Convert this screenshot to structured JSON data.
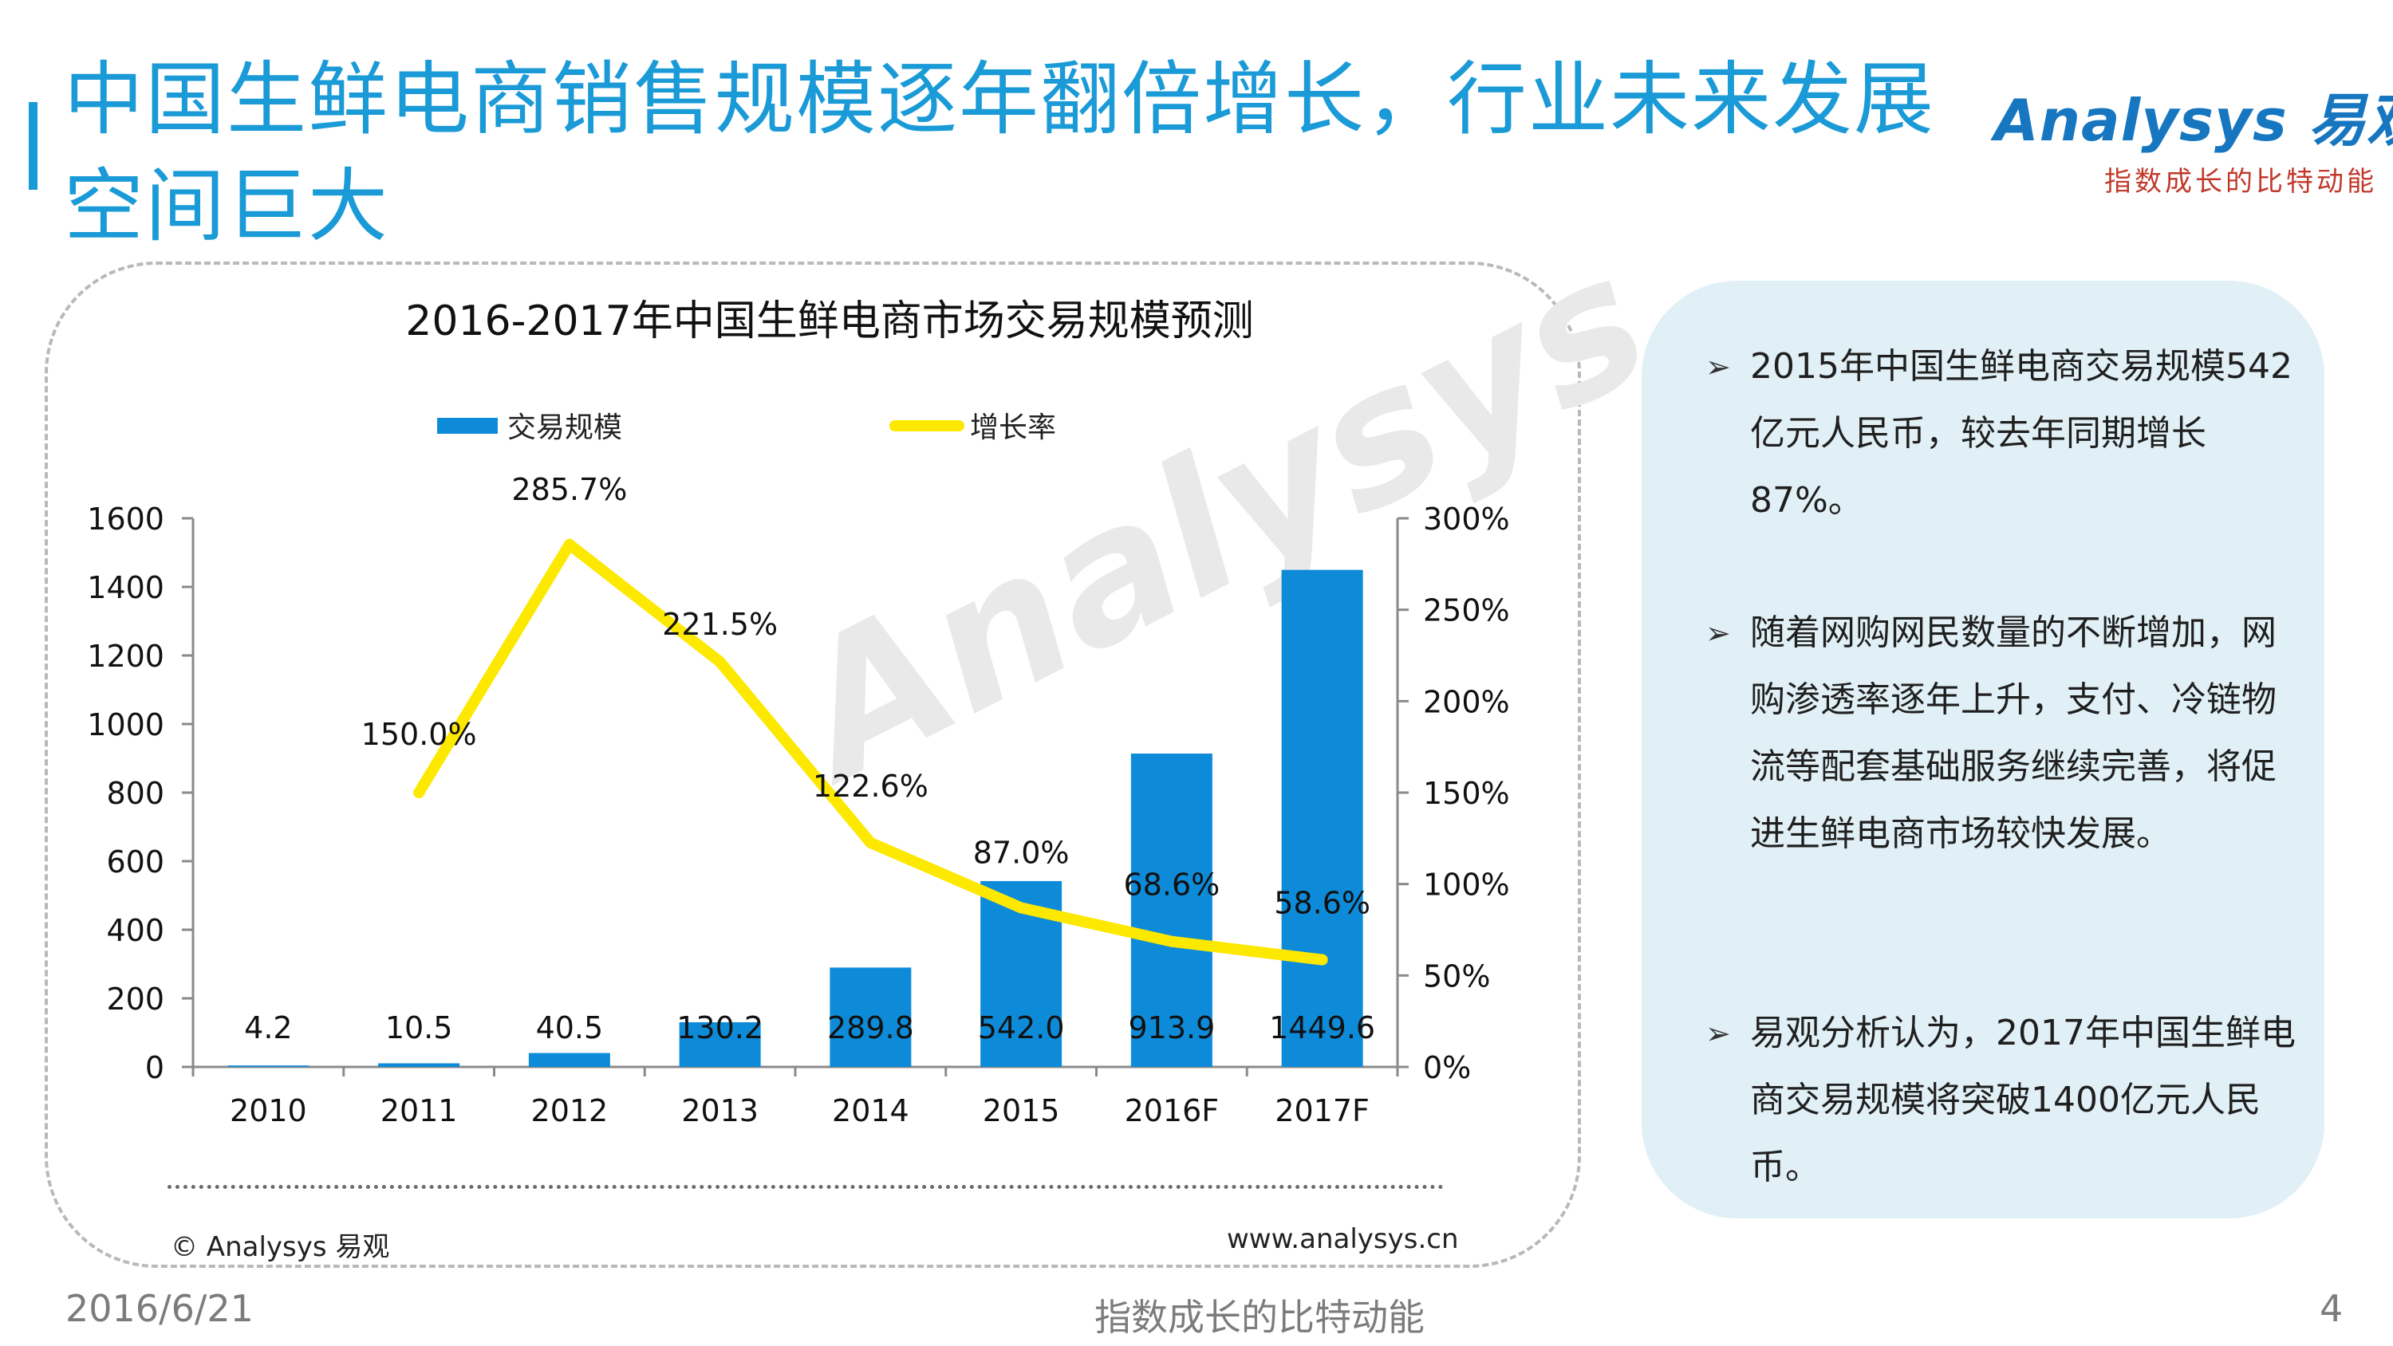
{
  "slide": {
    "title": "中国生鲜电商销售规模逐年翻倍增长，行业未来发展空间巨大",
    "logo_word": "Analysys 易观",
    "logo_tagline": "指数成长的比特动能",
    "watermark": "Analysys"
  },
  "chart_data": {
    "type": "bar+line",
    "title": "2016-2017年中国生鲜电商市场交易规模预测",
    "categories": [
      "2010",
      "2011",
      "2012",
      "2013",
      "2014",
      "2015",
      "2016F",
      "2017F"
    ],
    "series": [
      {
        "name": "交易规模",
        "type": "bar",
        "axis": "left",
        "color": "#0e8bd8",
        "values": [
          4.2,
          10.5,
          40.5,
          130.2,
          289.8,
          542.0,
          913.9,
          1449.6
        ],
        "labels": [
          "4.2",
          "10.5",
          "40.5",
          "130.2",
          "289.8",
          "542.0",
          "913.9",
          "1449.6"
        ]
      },
      {
        "name": "增长率",
        "type": "line",
        "axis": "right",
        "color": "#fde800",
        "values": [
          null,
          150.0,
          285.7,
          221.5,
          122.6,
          87.0,
          68.6,
          58.6
        ],
        "labels": [
          "",
          "150.0%",
          "285.7%",
          "221.5%",
          "122.6%",
          "87.0%",
          "68.6%",
          "58.6%"
        ]
      }
    ],
    "y_left": {
      "min": 0,
      "max": 1600,
      "ticks": [
        "0",
        "200",
        "400",
        "600",
        "800",
        "1000",
        "1200",
        "1400",
        "1600"
      ]
    },
    "y_right": {
      "min": 0,
      "max": 300,
      "ticks": [
        "0%",
        "50%",
        "100%",
        "150%",
        "200%",
        "250%",
        "300%"
      ]
    },
    "legend": "top",
    "grid": false
  },
  "source": {
    "copyright": "© Analysys 易观",
    "url": "www.analysys.cn"
  },
  "summary": {
    "bullets": [
      "2015年中国生鲜电商交易规模542亿元人民币，较去年同期增长87%。",
      "随着网购网民数量的不断增加，网购渗透率逐年上升，支付、冷链物流等配套基础服务继续完善，将促进生鲜电商市场较快发展。",
      "易观分析认为，2017年中国生鲜电商交易规模将突破1400亿元人民币。"
    ]
  },
  "footer": {
    "date": "2016/6/21",
    "tagline": "指数成长的比特动能",
    "page": "4"
  }
}
